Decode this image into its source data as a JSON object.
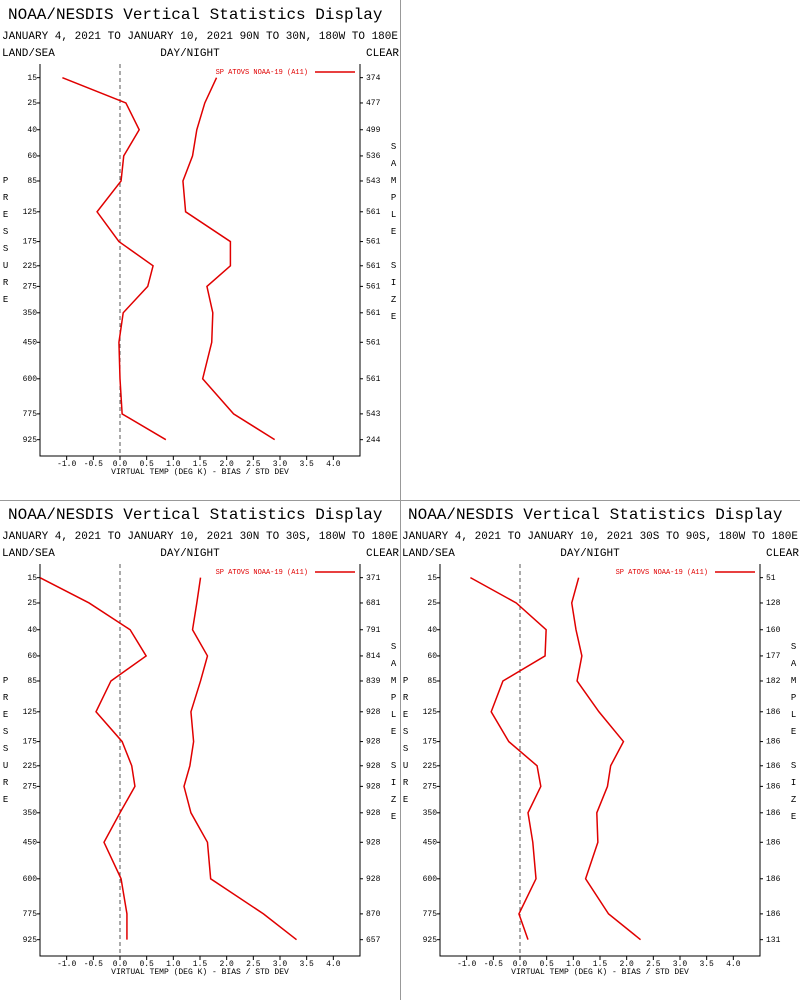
{
  "chart_data": [
    {
      "type": "line",
      "title": "NOAA/NESDIS Vertical Statistics Display",
      "date_range": "JANUARY 4, 2021 TO JANUARY 10, 2021",
      "region": "90N TO 30N, 180W TO 180E",
      "land_sea": "LAND/SEA",
      "day_night": "DAY/NIGHT",
      "clear": "CLEAR",
      "ylabel": "PRESSURE",
      "y2label": "SAMPLE SIZE",
      "xlabel": "VIRTUAL TEMP (DEG K) - BIAS / STD DEV",
      "y": [
        15,
        25,
        40,
        60,
        85,
        125,
        175,
        225,
        275,
        350,
        450,
        600,
        775,
        925
      ],
      "sample_size": [
        374,
        477,
        499,
        536,
        543,
        561,
        561,
        561,
        561,
        561,
        561,
        561,
        543,
        244
      ],
      "series": [
        {
          "name": "SP ATOVS NOAA-19 (A11)",
          "color": "#e00000",
          "values": [
            -1.08,
            0.11,
            0.36,
            0.07,
            0.02,
            -0.43,
            -0.02,
            0.62,
            0.52,
            0.06,
            -0.02,
            0,
            0.04,
            0.86
          ],
          "std_dev": [
            1.81,
            1.59,
            1.44,
            1.36,
            1.18,
            1.23,
            2.07,
            2.07,
            1.63,
            1.74,
            1.72,
            1.55,
            2.13,
            2.9
          ]
        }
      ],
      "xlim": [
        -1.5,
        4.5
      ],
      "ylim": [
        11,
        1030
      ],
      "xticks": [
        {
          "value": -1,
          "label": "-1.0"
        },
        -0.5,
        {
          "value": 0,
          "label": "0.0"
        },
        0.5,
        {
          "value": 1,
          "label": "1.0"
        },
        1.5,
        {
          "value": 2,
          "label": "2.0"
        },
        2.5,
        {
          "value": 3,
          "label": "3.0"
        },
        3.5,
        {
          "value": 4,
          "label": "4.0"
        }
      ]
    },
    {
      "type": "line",
      "title": "NOAA/NESDIS Vertical Statistics Display",
      "date_range": "JANUARY 4, 2021 TO JANUARY 10, 2021",
      "region": "30N TO 30S, 180W TO 180E",
      "land_sea": "LAND/SEA",
      "day_night": "DAY/NIGHT",
      "clear": "CLEAR",
      "ylabel": "PRESSURE",
      "y2label": "SAMPLE SIZE",
      "xlabel": "VIRTUAL TEMP (DEG K) - BIAS / STD DEV",
      "y": [
        15,
        25,
        40,
        60,
        85,
        125,
        175,
        225,
        275,
        350,
        450,
        600,
        775,
        925
      ],
      "sample_size": [
        371,
        681,
        791,
        814,
        839,
        928,
        928,
        928,
        928,
        928,
        928,
        928,
        870,
        657
      ],
      "series": [
        {
          "name": "SP ATOVS NOAA-19 (A11)",
          "color": "#e00000",
          "values": [
            -1.5,
            -0.58,
            0.19,
            0.49,
            -0.17,
            -0.45,
            0.04,
            0.22,
            0.28,
            0,
            -0.3,
            0.02,
            0.13,
            0.13
          ],
          "std_dev": [
            1.51,
            1.44,
            1.36,
            1.64,
            1.51,
            1.33,
            1.38,
            1.31,
            1.2,
            1.33,
            1.64,
            1.7,
            2.69,
            3.31
          ]
        }
      ],
      "xlim": [
        -1.5,
        4.5
      ],
      "ylim": [
        11,
        1030
      ],
      "xticks": [
        {
          "value": -1,
          "label": "-1.0"
        },
        -0.5,
        {
          "value": 0,
          "label": "0.0"
        },
        0.5,
        {
          "value": 1,
          "label": "1.0"
        },
        1.5,
        {
          "value": 2,
          "label": "2.0"
        },
        2.5,
        {
          "value": 3,
          "label": "3.0"
        },
        3.5,
        {
          "value": 4,
          "label": "4.0"
        }
      ]
    },
    {
      "type": "line",
      "title": "NOAA/NESDIS Vertical Statistics Display",
      "date_range": "JANUARY 4, 2021 TO JANUARY 10, 2021",
      "region": "30S TO 90S, 180W TO 180E",
      "land_sea": "LAND/SEA",
      "day_night": "DAY/NIGHT",
      "clear": "CLEAR",
      "ylabel": "PRESSURE",
      "y2label": "SAMPLE SIZE",
      "xlabel": "VIRTUAL TEMP (DEG K) - BIAS / STD DEV",
      "y": [
        15,
        25,
        40,
        60,
        85,
        125,
        175,
        225,
        275,
        350,
        450,
        600,
        775,
        925
      ],
      "sample_size": [
        51,
        128,
        160,
        177,
        182,
        186,
        186,
        186,
        186,
        186,
        186,
        186,
        186,
        131
      ],
      "series": [
        {
          "name": "SP ATOVS NOAA-19 (A11)",
          "color": "#e00000",
          "values": [
            -0.93,
            -0.07,
            0.49,
            0.47,
            -0.32,
            -0.54,
            -0.21,
            0.32,
            0.39,
            0.15,
            0.24,
            0.3,
            -0.02,
            0.15
          ],
          "std_dev": [
            1.1,
            0.97,
            1.05,
            1.16,
            1.07,
            1.48,
            1.94,
            1.7,
            1.64,
            1.44,
            1.46,
            1.23,
            1.66,
            2.26
          ]
        }
      ],
      "xlim": [
        -1.5,
        4.5
      ],
      "ylim": [
        11,
        1030
      ],
      "xticks": [
        {
          "value": -1,
          "label": "-1.0"
        },
        -0.5,
        {
          "value": 0,
          "label": "0.0"
        },
        0.5,
        {
          "value": 1,
          "label": "1.0"
        },
        1.5,
        {
          "value": 2,
          "label": "2.0"
        },
        2.5,
        {
          "value": 3,
          "label": "3.0"
        },
        3.5,
        {
          "value": 4,
          "label": "4.0"
        }
      ]
    }
  ]
}
